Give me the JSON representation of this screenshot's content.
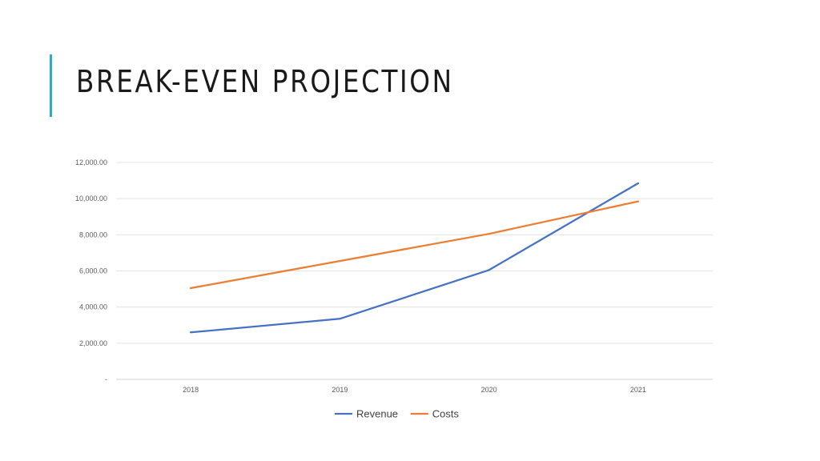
{
  "slide": {
    "title": "BREAK-EVEN PROJECTION",
    "accent_color": "#2fa9c9"
  },
  "chart_data": {
    "type": "line",
    "x": [
      "2018",
      "2019",
      "2020",
      "2021"
    ],
    "series": [
      {
        "name": "Revenue",
        "values": [
          2600,
          3350,
          6050,
          10850
        ],
        "color": "#4472c4"
      },
      {
        "name": "Costs",
        "values": [
          5050,
          6550,
          8050,
          9850
        ],
        "color": "#ed7d31"
      }
    ],
    "y_ticks": [
      {
        "value": 0,
        "label": "-"
      },
      {
        "value": 2000,
        "label": "2,000.00"
      },
      {
        "value": 4000,
        "label": "4,000.00"
      },
      {
        "value": 6000,
        "label": "6,000.00"
      },
      {
        "value": 8000,
        "label": "8,000.00"
      },
      {
        "value": 10000,
        "label": "10,000.00"
      },
      {
        "value": 12000,
        "label": "12,000.00"
      }
    ],
    "ylim": [
      0,
      12000
    ],
    "grid": true,
    "legend": "bottom-center",
    "title": "",
    "xlabel": "",
    "ylabel": ""
  }
}
